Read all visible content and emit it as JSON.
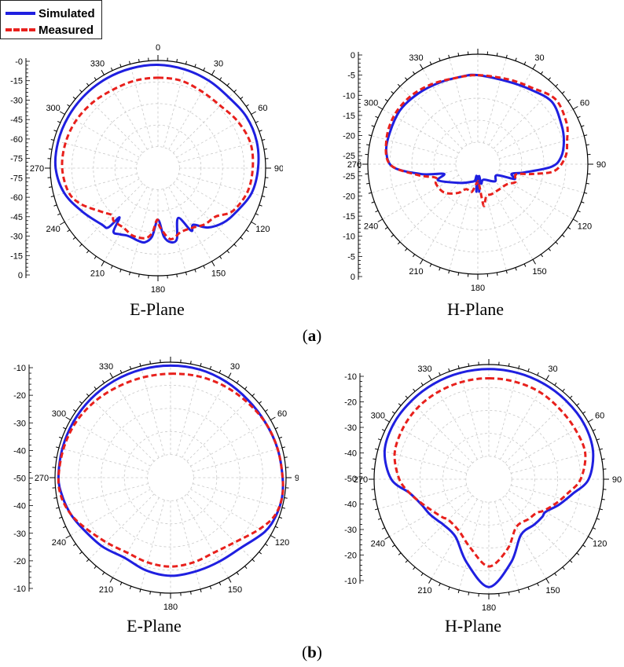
{
  "legend": {
    "simulated_label": "Simulated",
    "measured_label": "Measured",
    "simulated_color": "#1f1fe0",
    "measured_color": "#e8201c"
  },
  "labels": {
    "a": "a",
    "b": "b"
  },
  "chart_data": [
    {
      "type": "polar-line",
      "group": "a",
      "title": "E-Plane",
      "angle_ticks": [
        "0",
        "30",
        "60",
        "90",
        "120",
        "150",
        "180",
        "210",
        "240",
        "270",
        "300",
        "330"
      ],
      "radial_ticks": [
        "-0",
        "-15",
        "-30",
        "-45",
        "-60",
        "-75",
        "-75",
        "-60",
        "-45",
        "-30",
        "-15",
        "0"
      ],
      "series": [
        {
          "name": "Simulated",
          "angles": [
            0,
            15,
            30,
            45,
            60,
            75,
            90,
            105,
            120,
            130,
            140,
            148,
            152,
            158,
            165,
            170,
            175,
            180,
            185,
            190,
            195,
            200,
            205,
            210,
            215,
            218,
            220,
            225,
            240,
            255,
            270,
            285,
            300,
            315,
            330,
            345
          ],
          "values": [
            0.96,
            0.95,
            0.94,
            0.93,
            0.95,
            0.95,
            0.93,
            0.9,
            0.83,
            0.79,
            0.72,
            0.62,
            0.66,
            0.5,
            0.68,
            0.7,
            0.64,
            0.48,
            0.64,
            0.7,
            0.7,
            0.69,
            0.69,
            0.71,
            0.72,
            0.58,
            0.72,
            0.74,
            0.81,
            0.9,
            0.95,
            0.96,
            0.96,
            0.96,
            0.96,
            0.96
          ]
        },
        {
          "name": "Measured",
          "angles": [
            0,
            15,
            30,
            45,
            60,
            75,
            90,
            105,
            120,
            130,
            140,
            150,
            160,
            170,
            178,
            181,
            185,
            190,
            200,
            210,
            220,
            224,
            232,
            245,
            255,
            270,
            285,
            300,
            315,
            330,
            345
          ],
          "values": [
            0.84,
            0.84,
            0.82,
            0.82,
            0.86,
            0.89,
            0.88,
            0.86,
            0.8,
            0.7,
            0.68,
            0.64,
            0.63,
            0.67,
            0.55,
            0.48,
            0.6,
            0.66,
            0.67,
            0.64,
            0.64,
            0.61,
            0.66,
            0.79,
            0.86,
            0.89,
            0.89,
            0.88,
            0.86,
            0.84,
            0.84
          ]
        }
      ]
    },
    {
      "type": "polar-line",
      "group": "a",
      "title": "H-Plane",
      "angle_ticks": [
        "0",
        "30",
        "60",
        "90",
        "120",
        "150",
        "180",
        "210",
        "240",
        "270",
        "300",
        "330"
      ],
      "radial_ticks": [
        "0",
        "-5",
        "-10",
        "-15",
        "-20",
        "-25",
        "-25",
        "-20",
        "-15",
        "-10",
        "-5",
        "0"
      ],
      "series": [
        {
          "name": "Simulated",
          "angles": [
            0,
            20,
            35,
            50,
            65,
            75,
            85,
            92,
            100,
            106,
            112,
            120,
            135,
            160,
            170,
            174,
            177,
            180,
            183,
            186,
            190,
            200,
            225,
            248,
            254,
            260,
            268,
            278,
            290,
            305,
            320,
            335,
            350
          ],
          "values": [
            0.81,
            0.8,
            0.83,
            0.88,
            0.84,
            0.81,
            0.76,
            0.67,
            0.43,
            0.32,
            0.36,
            0.2,
            0.22,
            0.15,
            0.18,
            0.11,
            0.25,
            0.11,
            0.25,
            0.11,
            0.15,
            0.17,
            0.24,
            0.39,
            0.32,
            0.52,
            0.77,
            0.84,
            0.85,
            0.86,
            0.84,
            0.82,
            0.81
          ]
        },
        {
          "name": "Measured",
          "angles": [
            0,
            20,
            35,
            50,
            65,
            75,
            85,
            95,
            100,
            105,
            115,
            125,
            140,
            155,
            165,
            172,
            177,
            180,
            183,
            188,
            193,
            205,
            215,
            230,
            245,
            252,
            260,
            270,
            285,
            300,
            315,
            330,
            345
          ],
          "values": [
            0.81,
            0.82,
            0.85,
            0.92,
            0.89,
            0.84,
            0.8,
            0.7,
            0.51,
            0.36,
            0.38,
            0.32,
            0.3,
            0.3,
            0.3,
            0.38,
            0.17,
            0.17,
            0.17,
            0.21,
            0.26,
            0.25,
            0.32,
            0.4,
            0.42,
            0.4,
            0.56,
            0.8,
            0.86,
            0.88,
            0.87,
            0.84,
            0.81
          ]
        }
      ]
    },
    {
      "type": "polar-line",
      "group": "b",
      "title": "E-Plane",
      "angle_ticks": [
        "0",
        "30",
        "60",
        "90",
        "120",
        "150",
        "180",
        "210",
        "240",
        "270",
        "300",
        "330"
      ],
      "radial_ticks": [
        "-10",
        "-20",
        "-30",
        "-40",
        "-50",
        "-40",
        "-30",
        "-20",
        "-10"
      ],
      "series": [
        {
          "name": "Simulated",
          "angles": [
            0,
            15,
            30,
            45,
            60,
            75,
            90,
            100,
            110,
            120,
            135,
            150,
            165,
            180,
            195,
            210,
            225,
            240,
            250,
            260,
            270,
            285,
            300,
            315,
            330,
            345
          ],
          "values": [
            0.97,
            0.97,
            0.96,
            0.95,
            0.95,
            0.96,
            0.97,
            0.98,
            0.97,
            0.94,
            0.86,
            0.84,
            0.84,
            0.85,
            0.83,
            0.8,
            0.84,
            0.88,
            0.92,
            0.95,
            0.97,
            0.97,
            0.97,
            0.97,
            0.97,
            0.97
          ]
        },
        {
          "name": "Measured",
          "angles": [
            0,
            15,
            30,
            45,
            60,
            75,
            90,
            100,
            110,
            120,
            135,
            150,
            165,
            180,
            195,
            210,
            225,
            240,
            250,
            260,
            270,
            285,
            300,
            315,
            330,
            345
          ],
          "values": [
            0.9,
            0.91,
            0.92,
            0.93,
            0.95,
            0.96,
            0.97,
            0.98,
            0.96,
            0.89,
            0.79,
            0.75,
            0.76,
            0.77,
            0.76,
            0.75,
            0.79,
            0.86,
            0.92,
            0.96,
            0.97,
            0.96,
            0.95,
            0.93,
            0.91,
            0.9
          ]
        }
      ]
    },
    {
      "type": "polar-line",
      "group": "b",
      "title": "H-Plane",
      "angle_ticks": [
        "0",
        "30",
        "60",
        "90",
        "120",
        "150",
        "180",
        "210",
        "240",
        "270",
        "300",
        "330"
      ],
      "radial_ticks": [
        "-10",
        "-20",
        "-30",
        "-40",
        "-50",
        "-40",
        "-30",
        "-20",
        "-10"
      ],
      "series": [
        {
          "name": "Simulated",
          "angles": [
            0,
            15,
            30,
            45,
            60,
            75,
            90,
            100,
            110,
            120,
            125,
            135,
            150,
            165,
            180,
            195,
            210,
            225,
            230,
            240,
            250,
            260,
            270,
            285,
            300,
            315,
            330,
            345
          ],
          "values": [
            0.96,
            0.96,
            0.96,
            0.96,
            0.96,
            0.94,
            0.87,
            0.74,
            0.65,
            0.57,
            0.57,
            0.56,
            0.56,
            0.75,
            0.94,
            0.75,
            0.58,
            0.56,
            0.57,
            0.6,
            0.63,
            0.7,
            0.85,
            0.94,
            0.96,
            0.96,
            0.96,
            0.96
          ]
        },
        {
          "name": "Measured",
          "angles": [
            0,
            15,
            30,
            45,
            60,
            75,
            90,
            100,
            110,
            120,
            125,
            135,
            150,
            165,
            180,
            195,
            210,
            225,
            230,
            240,
            250,
            260,
            270,
            285,
            300,
            315,
            330,
            345
          ],
          "values": [
            0.88,
            0.88,
            0.88,
            0.87,
            0.87,
            0.87,
            0.8,
            0.7,
            0.62,
            0.55,
            0.51,
            0.49,
            0.48,
            0.63,
            0.76,
            0.62,
            0.52,
            0.5,
            0.52,
            0.56,
            0.62,
            0.7,
            0.78,
            0.85,
            0.87,
            0.88,
            0.88,
            0.88
          ]
        }
      ]
    }
  ]
}
